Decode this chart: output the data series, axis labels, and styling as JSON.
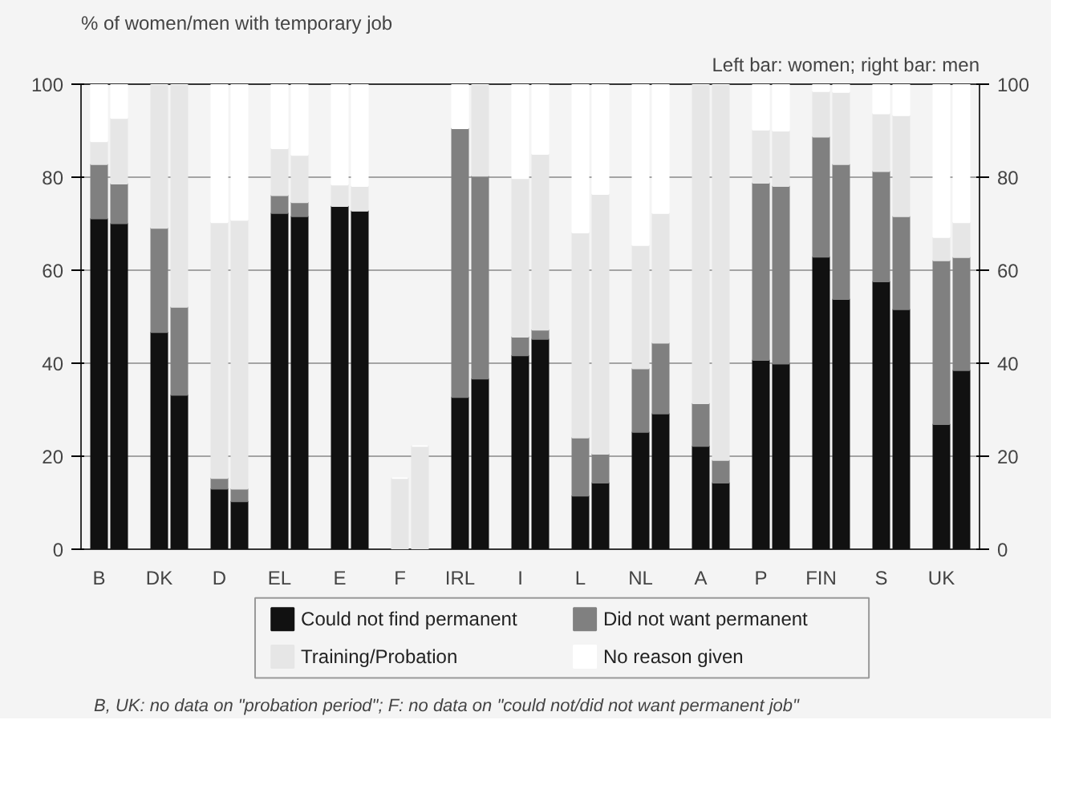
{
  "chart_data": {
    "type": "bar",
    "stacked": true,
    "title": "% of women/men with temporary job",
    "subtitle": "Left bar: women; right bar: men",
    "categories": [
      "B",
      null,
      "DK",
      null,
      "D",
      null,
      "EL",
      null,
      "E",
      null,
      "F",
      null,
      "IRL",
      null,
      "I",
      null,
      "L",
      null,
      "NL",
      null,
      "A",
      null,
      "P",
      null,
      "FIN",
      null,
      "S",
      null,
      "UK",
      null
    ],
    "series": [
      {
        "name": "Could not find permanent",
        "color": "#111111",
        "values": [
          71.1,
          70.1,
          46.7,
          33.2,
          13.0,
          10.3,
          72.3,
          71.6,
          73.8,
          72.8,
          0,
          0,
          32.7,
          36.7,
          41.7,
          45.2,
          11.5,
          14.3,
          25.2,
          29.2,
          22.2,
          14.3,
          40.7,
          39.9,
          62.9,
          53.8,
          57.6,
          51.6,
          26.9,
          38.5
        ]
      },
      {
        "name": "Did not want permanent",
        "color": "#808080",
        "values": [
          11.7,
          8.5,
          22.4,
          18.9,
          2.3,
          2.7,
          3.8,
          3.0,
          0,
          0,
          0,
          0,
          57.8,
          43.6,
          4.0,
          2.0,
          12.5,
          6.2,
          13.7,
          15.2,
          9.2,
          4.9,
          38.1,
          38.2,
          25.8,
          29.0,
          23.7,
          20.0,
          35.2,
          24.3
        ]
      },
      {
        "name": "Training/Probation",
        "color": "#e6e6e6",
        "values": [
          4.9,
          14.1,
          30.9,
          47.9,
          55.0,
          57.8,
          10.1,
          10.2,
          4.6,
          5.3,
          15.3,
          22.2,
          0,
          19.7,
          34.1,
          37.8,
          44.1,
          55.9,
          26.5,
          27.9,
          68.6,
          80.8,
          11.4,
          11.9,
          9.8,
          15.5,
          12.4,
          21.7,
          5.0,
          7.5
        ]
      },
      {
        "name": "No reason given",
        "color": "#ffffff",
        "values": [
          12.3,
          7.3,
          0,
          0,
          29.7,
          29.2,
          13.8,
          15.2,
          21.6,
          21.9,
          0,
          0,
          9.5,
          0,
          20.2,
          15.0,
          31.9,
          23.6,
          34.6,
          27.7,
          0,
          0,
          9.8,
          10.0,
          1.5,
          1.7,
          6.3,
          6.7,
          32.9,
          29.7
        ]
      }
    ],
    "ylim": [
      0,
      100
    ],
    "yticks": [
      0,
      20,
      40,
      60,
      80,
      100
    ],
    "y2lim": [
      0,
      100
    ],
    "y2ticks": [
      0,
      20,
      40,
      60,
      80,
      100
    ],
    "grid": "y",
    "legend": "bottom",
    "annotations": [
      "B, UK: no data on \"probation period\"; F: no data on \"could not/did not want permanent job\""
    ]
  }
}
